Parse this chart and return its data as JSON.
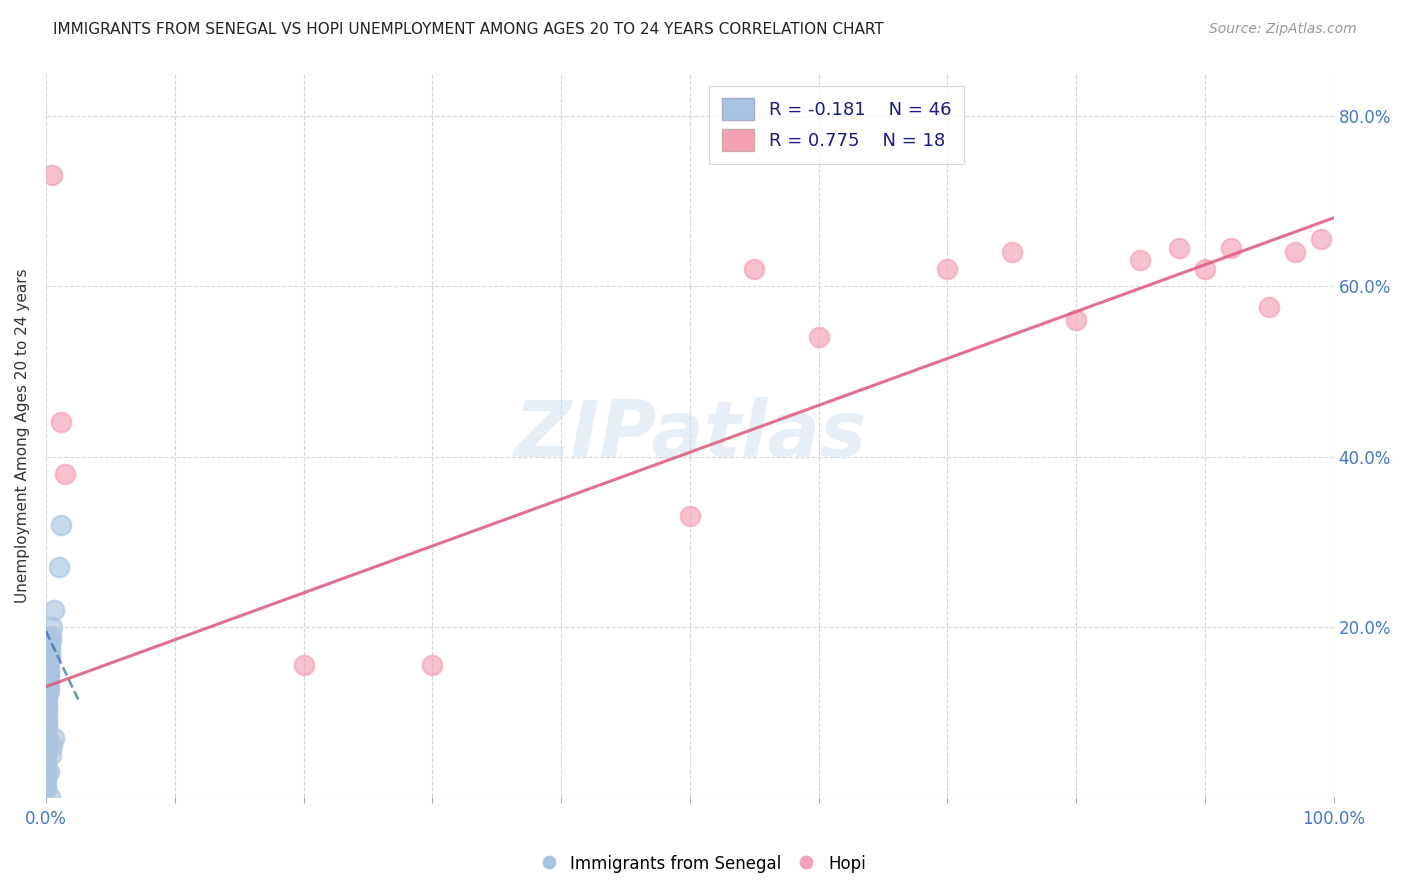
{
  "title": "IMMIGRANTS FROM SENEGAL VS HOPI UNEMPLOYMENT AMONG AGES 20 TO 24 YEARS CORRELATION CHART",
  "source": "Source: ZipAtlas.com",
  "ylabel": "Unemployment Among Ages 20 to 24 years",
  "xlim": [
    0,
    1.0
  ],
  "ylim": [
    0,
    0.85
  ],
  "xticks": [
    0.0,
    0.1,
    0.2,
    0.3,
    0.4,
    0.5,
    0.6,
    0.7,
    0.8,
    0.9,
    1.0
  ],
  "xticklabels": [
    "0.0%",
    "",
    "",
    "",
    "",
    "",
    "",
    "",
    "",
    "",
    "100.0%"
  ],
  "yticks": [
    0.0,
    0.2,
    0.4,
    0.6,
    0.8
  ],
  "yticklabels": [
    "",
    "20.0%",
    "40.0%",
    "60.0%",
    "80.0%"
  ],
  "legend_blue_r": "-0.181",
  "legend_blue_n": "46",
  "legend_pink_r": "0.775",
  "legend_pink_n": "18",
  "blue_color": "#a8c4e0",
  "pink_color": "#f4a0b5",
  "blue_line_color": "#3a6dad",
  "pink_line_color": "#e06080",
  "watermark": "ZIPatlas",
  "blue_scatter": [
    [
      0.012,
      0.32
    ],
    [
      0.01,
      0.27
    ],
    [
      0.006,
      0.22
    ],
    [
      0.005,
      0.2
    ],
    [
      0.004,
      0.19
    ],
    [
      0.004,
      0.185
    ],
    [
      0.003,
      0.18
    ],
    [
      0.003,
      0.175
    ],
    [
      0.003,
      0.17
    ],
    [
      0.003,
      0.165
    ],
    [
      0.002,
      0.16
    ],
    [
      0.002,
      0.155
    ],
    [
      0.002,
      0.15
    ],
    [
      0.002,
      0.145
    ],
    [
      0.002,
      0.14
    ],
    [
      0.002,
      0.135
    ],
    [
      0.002,
      0.13
    ],
    [
      0.002,
      0.125
    ],
    [
      0.001,
      0.12
    ],
    [
      0.001,
      0.115
    ],
    [
      0.001,
      0.11
    ],
    [
      0.001,
      0.105
    ],
    [
      0.001,
      0.1
    ],
    [
      0.001,
      0.095
    ],
    [
      0.001,
      0.09
    ],
    [
      0.001,
      0.085
    ],
    [
      0.001,
      0.08
    ],
    [
      0.001,
      0.075
    ],
    [
      0.001,
      0.07
    ],
    [
      0.001,
      0.065
    ],
    [
      0.001,
      0.06
    ],
    [
      0.0,
      0.055
    ],
    [
      0.0,
      0.05
    ],
    [
      0.0,
      0.045
    ],
    [
      0.0,
      0.04
    ],
    [
      0.0,
      0.035
    ],
    [
      0.0,
      0.03
    ],
    [
      0.0,
      0.025
    ],
    [
      0.0,
      0.02
    ],
    [
      0.0,
      0.015
    ],
    [
      0.0,
      0.01
    ],
    [
      0.002,
      0.03
    ],
    [
      0.004,
      0.05
    ],
    [
      0.005,
      0.06
    ],
    [
      0.003,
      0.0
    ],
    [
      0.006,
      0.07
    ]
  ],
  "pink_scatter": [
    [
      0.005,
      0.73
    ],
    [
      0.012,
      0.44
    ],
    [
      0.015,
      0.38
    ],
    [
      0.2,
      0.155
    ],
    [
      0.3,
      0.155
    ],
    [
      0.5,
      0.33
    ],
    [
      0.55,
      0.62
    ],
    [
      0.6,
      0.54
    ],
    [
      0.7,
      0.62
    ],
    [
      0.75,
      0.64
    ],
    [
      0.8,
      0.56
    ],
    [
      0.85,
      0.63
    ],
    [
      0.88,
      0.645
    ],
    [
      0.9,
      0.62
    ],
    [
      0.92,
      0.645
    ],
    [
      0.95,
      0.575
    ],
    [
      0.97,
      0.64
    ],
    [
      0.99,
      0.655
    ]
  ],
  "blue_trend_x": [
    0.0,
    0.025
  ],
  "blue_trend_y": [
    0.195,
    0.115
  ],
  "pink_trend_x": [
    0.0,
    1.0
  ],
  "pink_trend_y": [
    0.13,
    0.68
  ]
}
